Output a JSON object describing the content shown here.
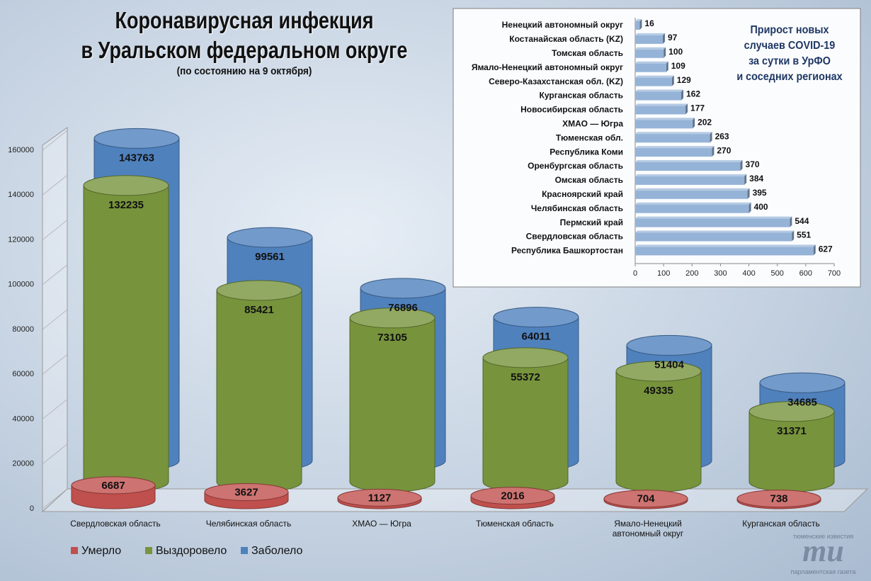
{
  "chart_data": [
    {
      "type": "bar3d",
      "title": "Коронавирусная инфекция\nв Уральском федеральном округе",
      "subtitle": "(по состоянию на 9 октября)",
      "categories": [
        "Свердловская область",
        "Челябинская область",
        "ХМАО — Югра",
        "Тюменская область",
        "Ямало-Ненецкий\nавтономный округ",
        "Курганская область"
      ],
      "series": [
        {
          "name": "Умерло",
          "color": "#c0504d",
          "values": [
            6687,
            3627,
            1127,
            2016,
            704,
            738
          ]
        },
        {
          "name": "Выздоровело",
          "color": "#77933c",
          "values": [
            132235,
            85421,
            73105,
            55372,
            49335,
            31371
          ]
        },
        {
          "name": "Заболело",
          "color": "#4f81bd",
          "values": [
            143763,
            99561,
            76896,
            64011,
            51404,
            34685
          ]
        }
      ],
      "ylim": [
        0,
        160000
      ],
      "yticks": [
        0,
        20000,
        40000,
        60000,
        80000,
        100000,
        120000,
        140000,
        160000
      ],
      "legend": "bottom-left"
    },
    {
      "type": "bar",
      "orientation": "horizontal",
      "title": "Прирост новых\nслучаев COVID-19\nза сутки в УрФО\nи соседних регионах",
      "categories": [
        "Ненецкий автономный округ",
        "Костанайская область (KZ)",
        "Томская область",
        "Ямало-Ненецкий автономный округ",
        "Северо-Казахстанская обл. (KZ)",
        "Курганская область",
        "Новосибирская область",
        "ХМАО — Югра",
        "Тюменская обл.",
        "Республика Коми",
        "Оренбургская область",
        "Омская область",
        "Красноярский край",
        "Челябинская область",
        "Пермский край",
        "Свердловская область",
        "Республика Башкортостан"
      ],
      "values": [
        16,
        97,
        100,
        109,
        129,
        162,
        177,
        202,
        263,
        270,
        370,
        384,
        395,
        400,
        544,
        551,
        627
      ],
      "color": "#95b3d7",
      "xlim": [
        0,
        700
      ],
      "xticks": [
        0,
        100,
        200,
        300,
        400,
        500,
        600,
        700
      ]
    }
  ],
  "watermark": {
    "top": "тюменские известия",
    "logo": "mu",
    "bottom": "парламентская газета"
  }
}
